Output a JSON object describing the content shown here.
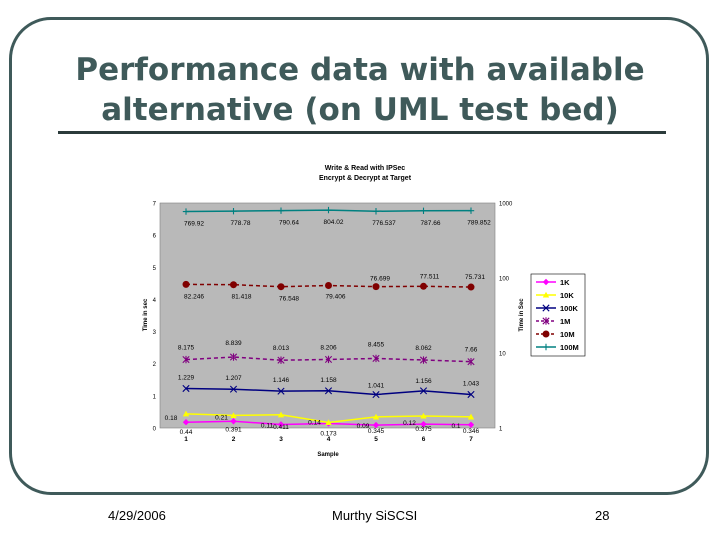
{
  "slide": {
    "title_line1": "Performance data with available",
    "title_line2": "alternative (on UML test bed)",
    "footer_date": "4/29/2006",
    "footer_center": "Murthy SiSCSI",
    "footer_page": "28"
  },
  "chart_data": {
    "type": "line",
    "title_line1": "Write & Read with IPSec",
    "title_line2": "Encrypt & Decrypt at Target",
    "xlabel": "Sample",
    "ylabel_left": "Time in sec",
    "ylabel_right": "Time in Sec",
    "categories": [
      "1",
      "2",
      "3",
      "4",
      "5",
      "6",
      "7"
    ],
    "ylim_left": [
      0,
      7
    ],
    "yticks_left": [
      "0",
      "1",
      "2",
      "3",
      "4",
      "5",
      "6",
      "7"
    ],
    "ylim_right": [
      1,
      1000
    ],
    "yscale_right": "log",
    "yticks_right": [
      "1",
      "10",
      "100",
      "1000"
    ],
    "legend_position": "right",
    "background": "#b9b9b9",
    "series": [
      {
        "name": "1K",
        "axis": "left",
        "color": "#ff00ff",
        "marker": "diamond",
        "dash": false,
        "values": [
          0.18,
          0.21,
          0.11,
          0.14,
          0.09,
          0.12,
          0.1
        ],
        "labels": [
          "0.18",
          "0.21",
          "0.11",
          "0.14",
          "0.09",
          "0.12",
          "0.1"
        ]
      },
      {
        "name": "10K",
        "axis": "left",
        "color": "#ffff00",
        "marker": "triangle",
        "dash": false,
        "values": [
          0.44,
          0.391,
          0.411,
          0.173,
          0.345,
          0.375,
          0.346
        ],
        "labels": [
          "0.44",
          "0.391",
          "0.411",
          "0.173",
          "0.345",
          "0.375",
          "0.346"
        ]
      },
      {
        "name": "100K",
        "axis": "left",
        "color": "#000080",
        "marker": "x",
        "dash": false,
        "values": [
          1.229,
          1.207,
          1.146,
          1.158,
          1.041,
          1.156,
          1.043
        ],
        "labels": [
          "1.229",
          "1.207",
          "1.146",
          "1.158",
          "1.041",
          "1.156",
          "1.043"
        ]
      },
      {
        "name": "1M",
        "axis": "right",
        "color": "#800080",
        "marker": "star",
        "dash": true,
        "values": [
          8.175,
          8.839,
          8.013,
          8.206,
          8.455,
          8.062,
          7.66
        ],
        "labels": [
          "8.175",
          "8.839",
          "8.013",
          "8.206",
          "8.455",
          "8.062",
          "7.66"
        ]
      },
      {
        "name": "10M",
        "axis": "right",
        "color": "#800000",
        "marker": "circle",
        "dash": true,
        "values": [
          82.246,
          81.418,
          76.548,
          79.406,
          76.699,
          77.511,
          75.731
        ],
        "labels": [
          "82.246",
          "81.418",
          "76.548",
          "79.406",
          "76.699",
          "77.511",
          "75.731"
        ]
      },
      {
        "name": "100M",
        "axis": "right",
        "color": "#008080",
        "marker": "plus",
        "dash": false,
        "values": [
          769.92,
          778.78,
          790.64,
          804.02,
          776.537,
          787.66,
          789.852
        ],
        "labels": [
          "769.92",
          "778.78",
          "790.64",
          "804.02",
          "776.537",
          "787.66",
          "789.852"
        ]
      }
    ]
  }
}
